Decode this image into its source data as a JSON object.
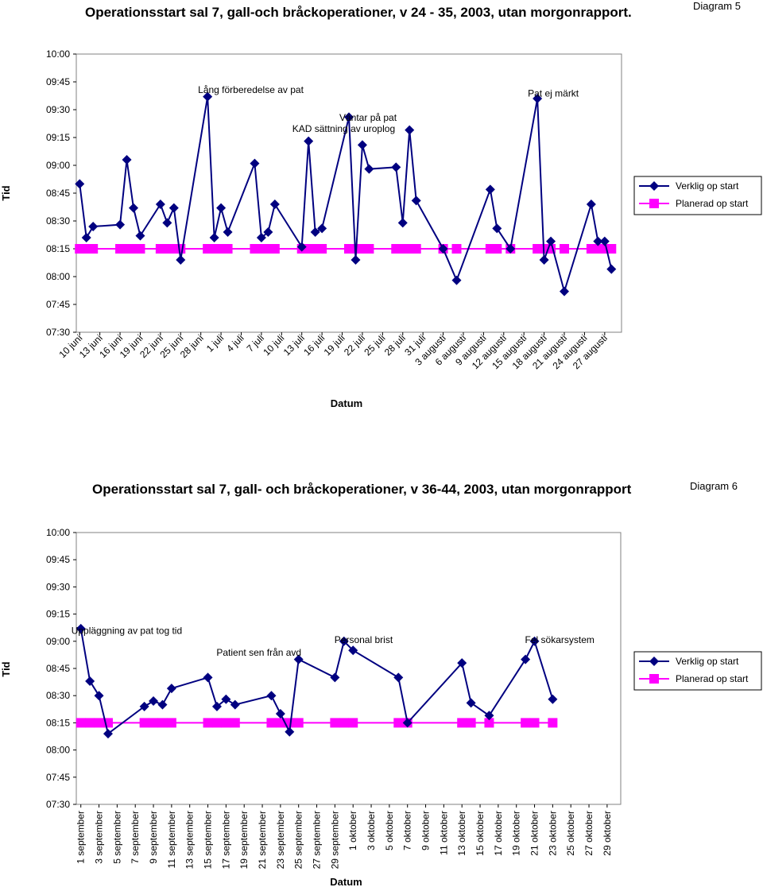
{
  "charts": [
    {
      "title": "Operationsstart sal 7, gall-och bråckoperationer, v 24 -  35, 2003, utan morgonrapport.",
      "diagram_label": "Diagram 5"
    },
    {
      "title": "Operationsstart sal 7, gall- och bråckoperationer, v 36-44, 2003, utan morgonrapport",
      "diagram_label": "Diagram 6"
    }
  ],
  "chart_data": [
    {
      "type": "line",
      "title": "Operationsstart sal 7, gall-och bråckoperationer, v 24 -  35, 2003, utan morgonrapport.",
      "xlabel": "Datum",
      "ylabel": "Tid",
      "y_ticks": [
        "10:00",
        "09:45",
        "09:30",
        "09:15",
        "09:00",
        "08:45",
        "08:30",
        "08:15",
        "08:00",
        "07:45",
        "07:30"
      ],
      "ylim": [
        "07:30",
        "10:00"
      ],
      "x_ticks": [
        "10 juni",
        "13 juni",
        "16 juni",
        "19 juni",
        "22 juni",
        "25 juni",
        "28 juni",
        "1 juli",
        "4 juli",
        "7 juli",
        "10 juli",
        "13 juli",
        "16 juli",
        "19 juli",
        "22 juli",
        "25 juli",
        "28 juli",
        "31 juli",
        "3 augusti",
        "6 augusti",
        "9 augusti",
        "12 augusti",
        "15 augusti",
        "18 augusti",
        "21 augusti",
        "24 augusti",
        "27 augusti"
      ],
      "x_range": [
        0,
        80
      ],
      "legend_position": "right",
      "grid": false,
      "series": [
        {
          "name": "Verklig op start",
          "color": "#000080",
          "marker": "diamond",
          "points": [
            [
              0,
              "08:50"
            ],
            [
              1,
              "08:21"
            ],
            [
              2,
              "08:27"
            ],
            [
              6,
              "08:28"
            ],
            [
              7,
              "09:03"
            ],
            [
              8,
              "08:37"
            ],
            [
              9,
              "08:22"
            ],
            [
              12,
              "08:39"
            ],
            [
              13,
              "08:29"
            ],
            [
              14,
              "08:37"
            ],
            [
              15,
              "08:09"
            ],
            [
              19,
              "09:37"
            ],
            [
              20,
              "08:21"
            ],
            [
              21,
              "08:37"
            ],
            [
              22,
              "08:24"
            ],
            [
              26,
              "09:01"
            ],
            [
              27,
              "08:21"
            ],
            [
              28,
              "08:24"
            ],
            [
              29,
              "08:39"
            ],
            [
              33,
              "08:16"
            ],
            [
              34,
              "09:13"
            ],
            [
              35,
              "08:24"
            ],
            [
              36,
              "08:26"
            ],
            [
              40,
              "09:26"
            ],
            [
              41,
              "08:09"
            ],
            [
              42,
              "09:11"
            ],
            [
              43,
              "08:58"
            ],
            [
              47,
              "08:59"
            ],
            [
              48,
              "08:29"
            ],
            [
              49,
              "09:19"
            ],
            [
              50,
              "08:41"
            ],
            [
              54,
              "08:15"
            ],
            [
              56,
              "07:58"
            ],
            [
              61,
              "08:47"
            ],
            [
              62,
              "08:26"
            ],
            [
              64,
              "08:15"
            ],
            [
              68,
              "09:36"
            ],
            [
              69,
              "08:09"
            ],
            [
              70,
              "08:19"
            ],
            [
              72,
              "07:52"
            ],
            [
              76,
              "08:39"
            ],
            [
              77,
              "08:19"
            ],
            [
              78,
              "08:19"
            ],
            [
              79,
              "08:04"
            ]
          ]
        },
        {
          "name": "Planerad op start",
          "color": "#FF00FF",
          "marker": "square",
          "points": [
            [
              0,
              "08:15"
            ],
            [
              1,
              "08:15"
            ],
            [
              2,
              "08:15"
            ],
            [
              6,
              "08:15"
            ],
            [
              7,
              "08:15"
            ],
            [
              8,
              "08:15"
            ],
            [
              9,
              "08:15"
            ],
            [
              12,
              "08:15"
            ],
            [
              13,
              "08:15"
            ],
            [
              14,
              "08:15"
            ],
            [
              15,
              "08:15"
            ],
            [
              19,
              "08:15"
            ],
            [
              20,
              "08:15"
            ],
            [
              21,
              "08:15"
            ],
            [
              22,
              "08:15"
            ],
            [
              26,
              "08:15"
            ],
            [
              27,
              "08:15"
            ],
            [
              28,
              "08:15"
            ],
            [
              29,
              "08:15"
            ],
            [
              33,
              "08:15"
            ],
            [
              34,
              "08:15"
            ],
            [
              35,
              "08:15"
            ],
            [
              36,
              "08:15"
            ],
            [
              40,
              "08:15"
            ],
            [
              41,
              "08:15"
            ],
            [
              42,
              "08:15"
            ],
            [
              43,
              "08:15"
            ],
            [
              47,
              "08:15"
            ],
            [
              48,
              "08:15"
            ],
            [
              49,
              "08:15"
            ],
            [
              50,
              "08:15"
            ],
            [
              54,
              "08:15"
            ],
            [
              56,
              "08:15"
            ],
            [
              61,
              "08:15"
            ],
            [
              62,
              "08:15"
            ],
            [
              64,
              "08:15"
            ],
            [
              68,
              "08:15"
            ],
            [
              69,
              "08:15"
            ],
            [
              70,
              "08:15"
            ],
            [
              72,
              "08:15"
            ],
            [
              76,
              "08:15"
            ],
            [
              77,
              "08:15"
            ],
            [
              78,
              "08:15"
            ],
            [
              79,
              "08:15"
            ]
          ]
        }
      ],
      "annotations": [
        {
          "text": "Lång förberedelse av pat",
          "x": 19,
          "y": "09:39"
        },
        {
          "text": "Väntar på pat",
          "x": 40,
          "y": "09:24"
        },
        {
          "text": "KAD sättning av uroplog",
          "x": 33,
          "y": "09:18"
        },
        {
          "text": "Pat ej märkt",
          "x": 68,
          "y": "09:37"
        }
      ]
    },
    {
      "type": "line",
      "title": "Operationsstart sal 7, gall- och bråckoperationer, v 36-44, 2003, utan morgonrapport",
      "xlabel": "Datum",
      "ylabel": "Tid",
      "y_ticks": [
        "10:00",
        "09:45",
        "09:30",
        "09:15",
        "09:00",
        "08:45",
        "08:30",
        "08:15",
        "08:00",
        "07:45",
        "07:30"
      ],
      "ylim": [
        "07:30",
        "10:00"
      ],
      "x_ticks": [
        "1 september",
        "3 september",
        "5 september",
        "7 september",
        "9 september",
        "11 september",
        "13 september",
        "15 september",
        "17 september",
        "19 september",
        "21 september",
        "23 september",
        "25 september",
        "27 september",
        "29 september",
        "1 oktober",
        "3 oktober",
        "5 oktober",
        "7 oktober",
        "9 oktober",
        "11 oktober",
        "13 oktober",
        "15 oktober",
        "17 oktober",
        "19 oktober",
        "21 oktober",
        "23 oktober",
        "25 oktober",
        "27 oktober",
        "29 oktober"
      ],
      "x_range": [
        0,
        59
      ],
      "legend_position": "right",
      "grid": false,
      "series": [
        {
          "name": "Verklig op start",
          "color": "#000080",
          "marker": "diamond",
          "points": [
            [
              0,
              "09:07"
            ],
            [
              1,
              "08:38"
            ],
            [
              2,
              "08:30"
            ],
            [
              3,
              "08:09"
            ],
            [
              7,
              "08:24"
            ],
            [
              8,
              "08:27"
            ],
            [
              9,
              "08:25"
            ],
            [
              10,
              "08:34"
            ],
            [
              14,
              "08:40"
            ],
            [
              15,
              "08:24"
            ],
            [
              16,
              "08:28"
            ],
            [
              17,
              "08:25"
            ],
            [
              21,
              "08:30"
            ],
            [
              22,
              "08:20"
            ],
            [
              23,
              "08:10"
            ],
            [
              24,
              "08:50"
            ],
            [
              28,
              "08:40"
            ],
            [
              29,
              "09:00"
            ],
            [
              30,
              "08:55"
            ],
            [
              35,
              "08:40"
            ],
            [
              36,
              "08:15"
            ],
            [
              42,
              "08:48"
            ],
            [
              43,
              "08:26"
            ],
            [
              45,
              "08:19"
            ],
            [
              49,
              "08:50"
            ],
            [
              50,
              "09:00"
            ],
            [
              52,
              "08:28"
            ]
          ]
        },
        {
          "name": "Planerad op start",
          "color": "#FF00FF",
          "marker": "square",
          "points": [
            [
              0,
              "08:15"
            ],
            [
              1,
              "08:15"
            ],
            [
              2,
              "08:15"
            ],
            [
              3,
              "08:15"
            ],
            [
              7,
              "08:15"
            ],
            [
              8,
              "08:15"
            ],
            [
              9,
              "08:15"
            ],
            [
              10,
              "08:15"
            ],
            [
              14,
              "08:15"
            ],
            [
              15,
              "08:15"
            ],
            [
              16,
              "08:15"
            ],
            [
              17,
              "08:15"
            ],
            [
              21,
              "08:15"
            ],
            [
              22,
              "08:15"
            ],
            [
              23,
              "08:15"
            ],
            [
              24,
              "08:15"
            ],
            [
              28,
              "08:15"
            ],
            [
              29,
              "08:15"
            ],
            [
              30,
              "08:15"
            ],
            [
              35,
              "08:15"
            ],
            [
              36,
              "08:15"
            ],
            [
              42,
              "08:15"
            ],
            [
              43,
              "08:15"
            ],
            [
              45,
              "08:15"
            ],
            [
              49,
              "08:15"
            ],
            [
              50,
              "08:15"
            ],
            [
              52,
              "08:15"
            ]
          ]
        }
      ],
      "annotations": [
        {
          "text": "Uppläggning av pat tog tid",
          "x": 0,
          "y": "09:04"
        },
        {
          "text": "Patient sen från avd",
          "x": 16,
          "y": "08:52"
        },
        {
          "text": "Personal brist",
          "x": 29,
          "y": "08:59"
        },
        {
          "text": "Fel sökarsystem",
          "x": 50,
          "y": "08:59"
        }
      ]
    }
  ]
}
